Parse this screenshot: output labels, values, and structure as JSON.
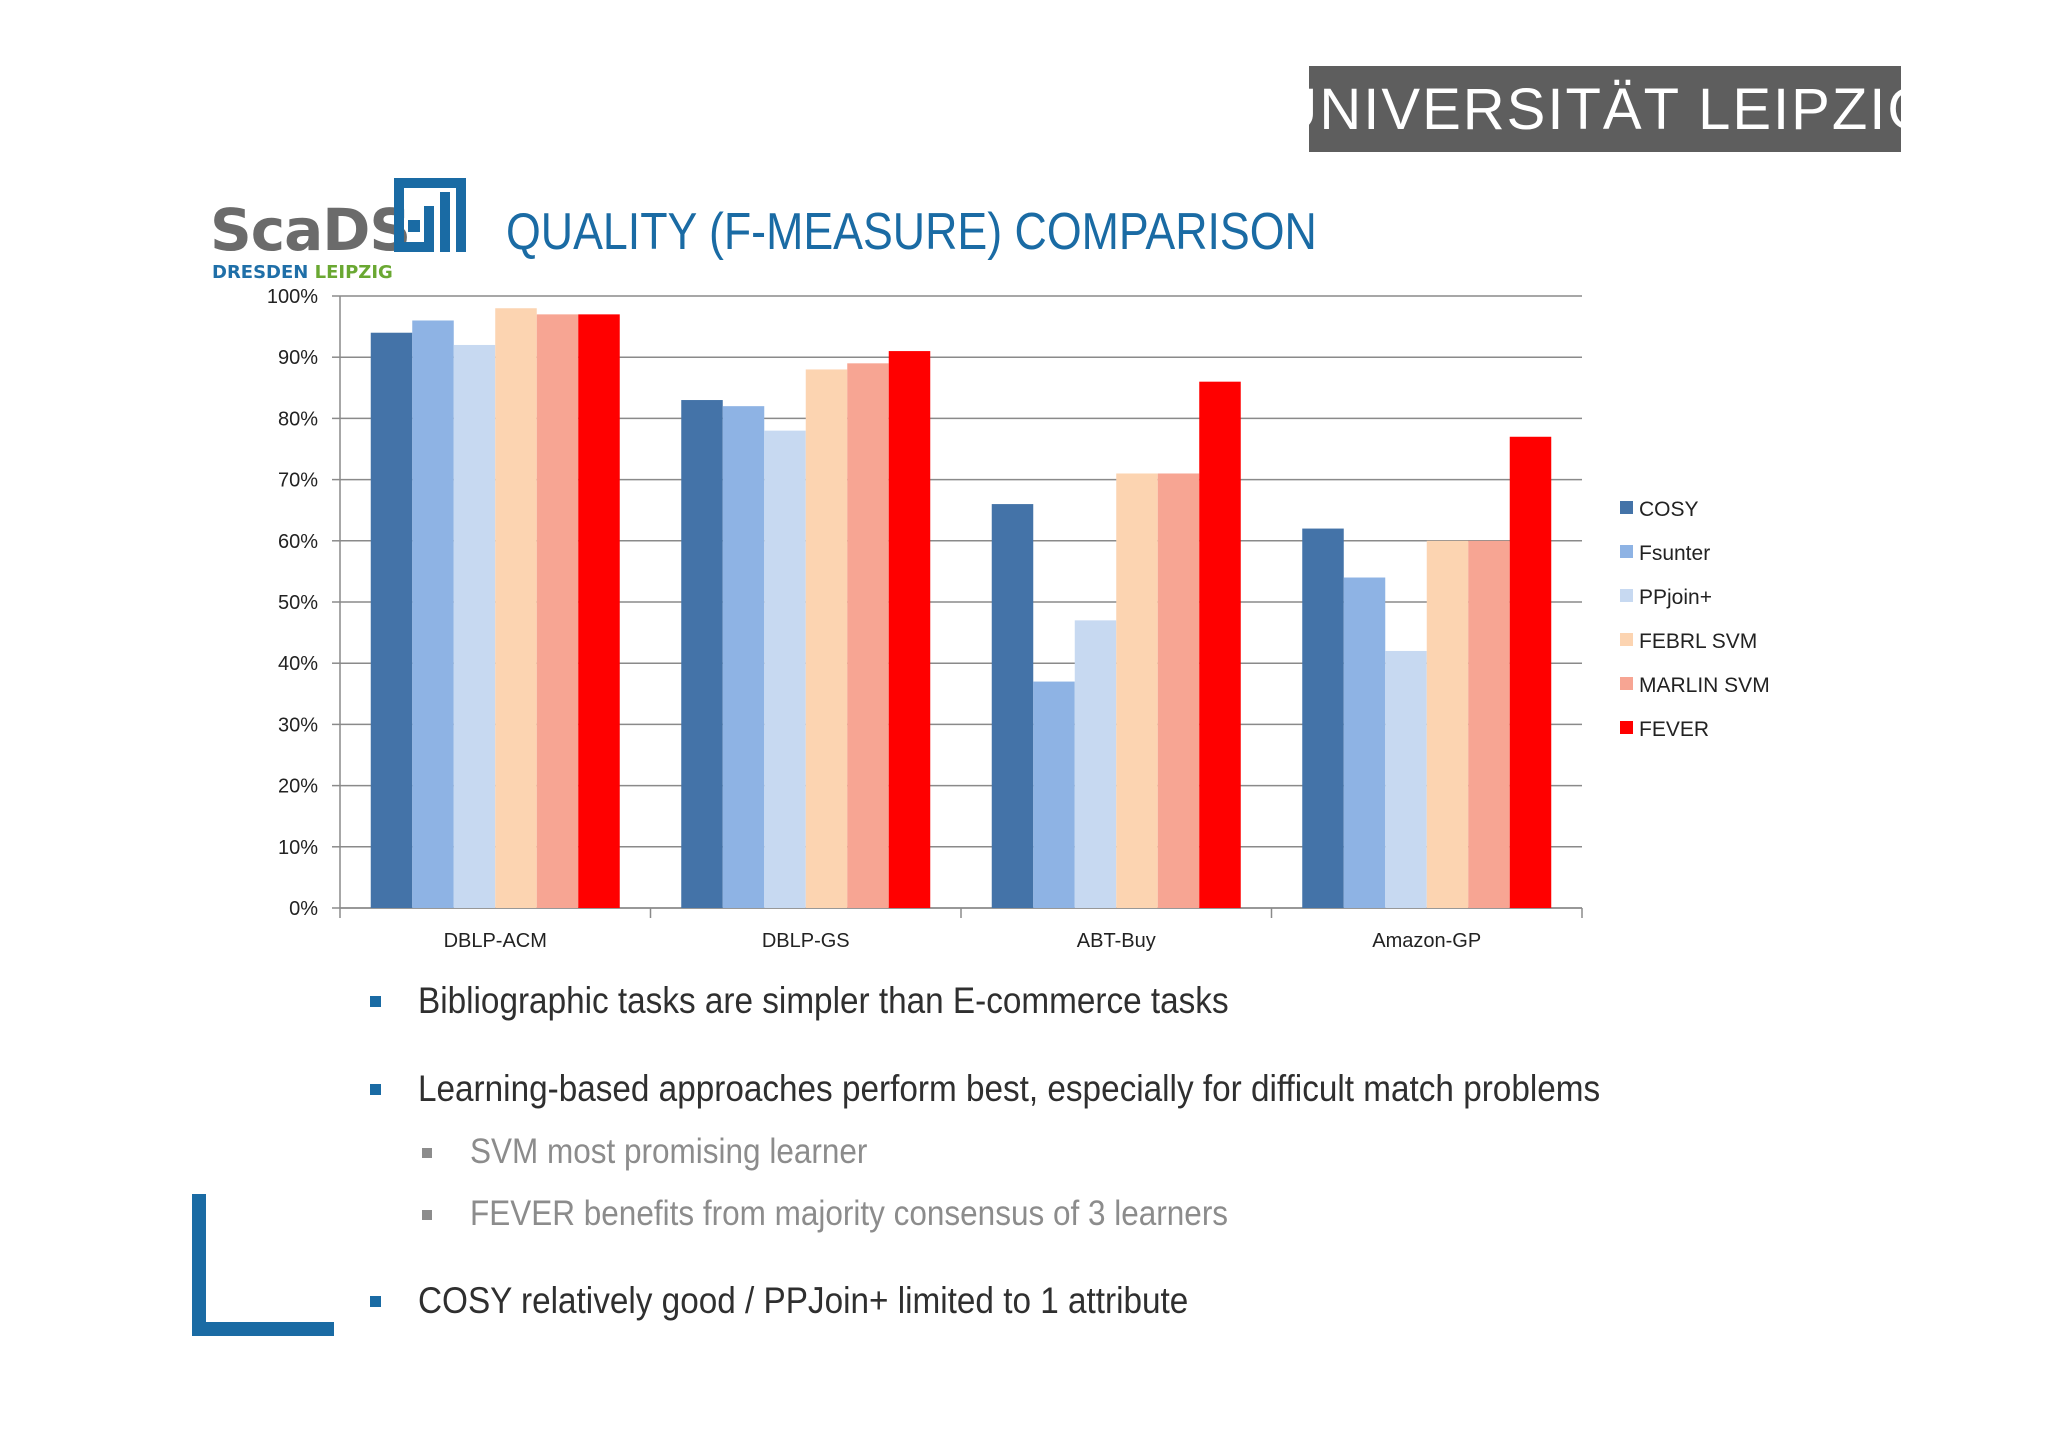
{
  "header": {
    "university": "UNIVERSITÄT LEIPZIG",
    "logo_word": "ScaDS",
    "logo_sub_1": "DRESDEN",
    "logo_sub_2": "LEIPZIG",
    "title": "QUALITY (F-MEASURE) COMPARISON"
  },
  "chart_data": {
    "type": "bar",
    "title": "",
    "xlabel": "",
    "ylabel": "",
    "ylim": [
      0,
      100
    ],
    "y_ticks": [
      "0%",
      "10%",
      "20%",
      "30%",
      "40%",
      "50%",
      "60%",
      "70%",
      "80%",
      "90%",
      "100%"
    ],
    "grid": true,
    "legend_position": "right",
    "categories": [
      "DBLP-ACM",
      "DBLP-GS",
      "ABT-Buy",
      "Amazon-GP"
    ],
    "series": [
      {
        "name": "COSY",
        "color": "#4473a8",
        "values": [
          94,
          83,
          66,
          62
        ]
      },
      {
        "name": "Fsunter",
        "color": "#8eb3e4",
        "values": [
          96,
          82,
          37,
          54
        ]
      },
      {
        "name": "PPjoin+",
        "color": "#c7d9f1",
        "values": [
          92,
          78,
          47,
          42
        ]
      },
      {
        "name": "FEBRL SVM",
        "color": "#fcd4b1",
        "values": [
          98,
          88,
          71,
          60
        ]
      },
      {
        "name": "MARLIN SVM",
        "color": "#f7a593",
        "values": [
          97,
          89,
          71,
          60
        ]
      },
      {
        "name": "FEVER",
        "color": "#ff0000",
        "values": [
          97,
          91,
          86,
          77
        ]
      }
    ]
  },
  "bullets": [
    {
      "level": 1,
      "text": "Bibliographic tasks are simpler than E-commerce tasks"
    },
    {
      "level": 1,
      "text": "Learning-based approaches perform best, especially for difficult match problems"
    },
    {
      "level": 2,
      "text": "SVM most promising learner"
    },
    {
      "level": 2,
      "text": "FEVER benefits from majority consensus of 3 learners"
    },
    {
      "level": 1,
      "text": "COSY relatively good / PPJoin+ limited to 1 attribute"
    }
  ]
}
